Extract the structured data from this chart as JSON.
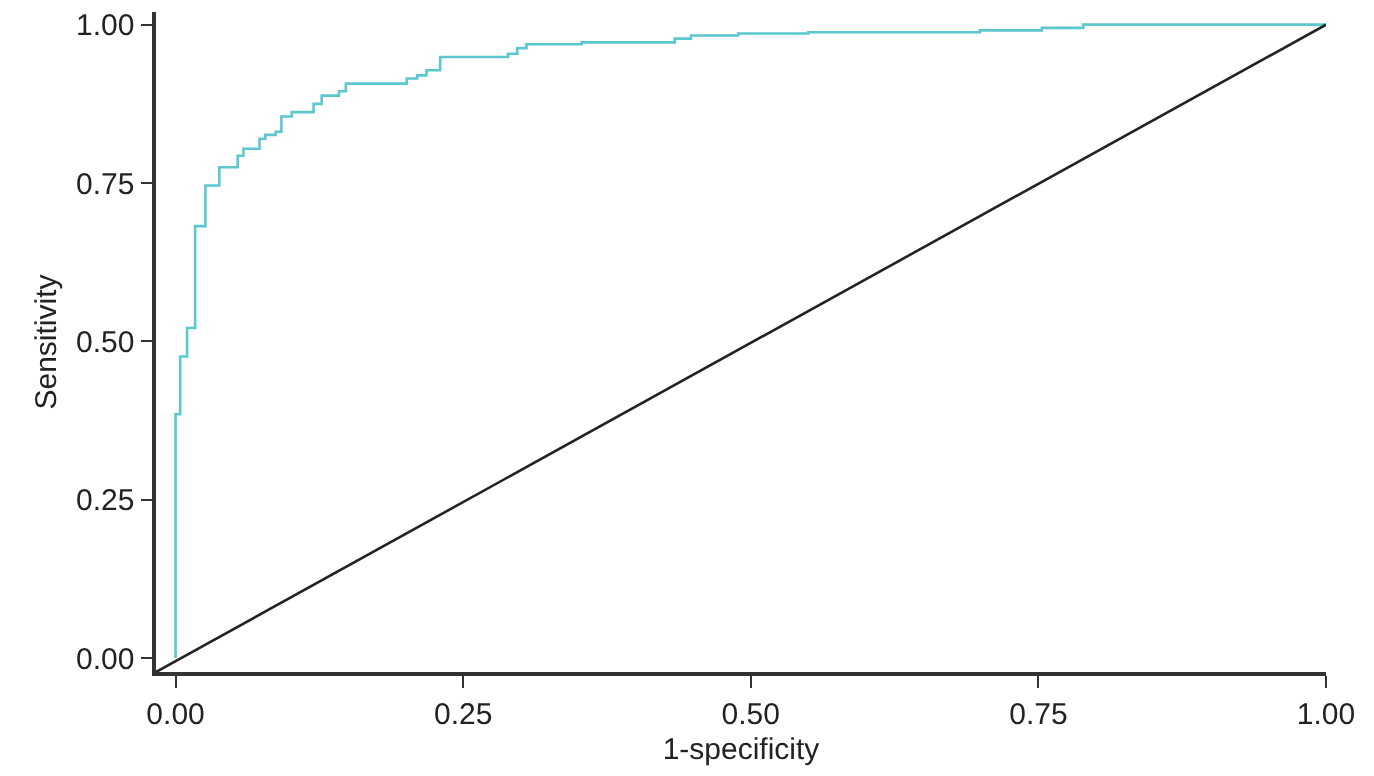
{
  "chart_data": {
    "type": "step",
    "xlabel": "1-specificity",
    "ylabel": "Sensitivity",
    "xlim": [
      -0.017,
      1
    ],
    "ylim": [
      -0.022,
      1.02
    ],
    "xticks": [
      {
        "value": 0,
        "label": "0.00"
      },
      {
        "value": 0.25,
        "label": "0.25"
      },
      {
        "value": 0.5,
        "label": "0.50"
      },
      {
        "value": 0.75,
        "label": "0.75"
      },
      {
        "value": 1,
        "label": "1.00"
      }
    ],
    "yticks": [
      {
        "value": 0,
        "label": "0.00"
      },
      {
        "value": 0.25,
        "label": "0.25"
      },
      {
        "value": 0.5,
        "label": "0.50"
      },
      {
        "value": 0.75,
        "label": "0.75"
      },
      {
        "value": 1,
        "label": "1.00"
      }
    ],
    "grid": false,
    "marker": "none",
    "line_style": "solid",
    "series": [
      {
        "color": "#5bc8d0",
        "x": [
          0,
          0,
          0.004,
          0.01,
          0.017,
          0.026,
          0.038,
          0.054,
          0.059,
          0.073,
          0.078,
          0.087,
          0.092,
          0.101,
          0.12,
          0.127,
          0.142,
          0.148,
          0.201,
          0.21,
          0.218,
          0.23,
          0.289,
          0.297,
          0.305,
          0.353,
          0.434,
          0.448,
          0.489,
          0.55,
          0.699,
          0.753,
          0.789,
          1
        ],
        "values": [
          0,
          0.385,
          0.476,
          0.521,
          0.682,
          0.746,
          0.775,
          0.793,
          0.804,
          0.82,
          0.826,
          0.831,
          0.855,
          0.862,
          0.875,
          0.888,
          0.895,
          0.907,
          0.915,
          0.92,
          0.928,
          0.949,
          0.954,
          0.963,
          0.969,
          0.972,
          0.978,
          0.983,
          0.986,
          0.988,
          0.991,
          0.995,
          1,
          1
        ]
      },
      {
        "type": "line",
        "color": "#222222",
        "x": [
          -0.017,
          1
        ],
        "values": [
          -0.022,
          1
        ]
      }
    ]
  }
}
